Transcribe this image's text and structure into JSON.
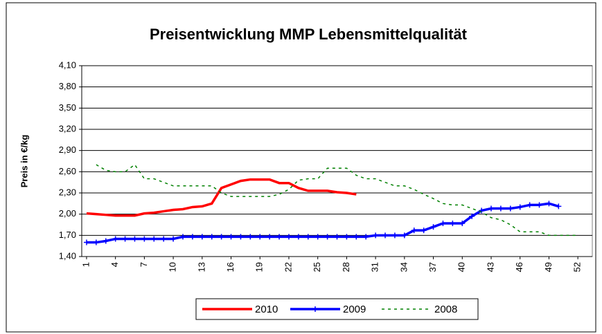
{
  "chart_data": {
    "type": "line",
    "title": "Preisentwicklung MMP Lebensmittelqualität",
    "y_label": "Preis in €/kg",
    "x": [
      1,
      2,
      3,
      4,
      5,
      6,
      7,
      8,
      9,
      10,
      11,
      12,
      13,
      14,
      15,
      16,
      17,
      18,
      19,
      20,
      21,
      22,
      23,
      24,
      25,
      26,
      27,
      28,
      29,
      30,
      31,
      32,
      33,
      34,
      35,
      36,
      37,
      38,
      39,
      40,
      41,
      42,
      43,
      44,
      45,
      46,
      47,
      48,
      49,
      50,
      51,
      52,
      53
    ],
    "xlim": [
      0.5,
      53.5
    ],
    "xticks": [
      1,
      4,
      7,
      10,
      13,
      16,
      19,
      22,
      25,
      28,
      31,
      34,
      37,
      40,
      43,
      46,
      49,
      52
    ],
    "ylim": [
      1.4,
      4.1
    ],
    "yticks": [
      {
        "value": 1.4,
        "label": "1,40"
      },
      {
        "value": 1.7,
        "label": "1,70"
      },
      {
        "value": 2.0,
        "label": "2,00"
      },
      {
        "value": 2.3,
        "label": "2,30"
      },
      {
        "value": 2.6,
        "label": "2,60"
      },
      {
        "value": 2.9,
        "label": "2,90"
      },
      {
        "value": 3.2,
        "label": "3,20"
      },
      {
        "value": 3.5,
        "label": "3,50"
      },
      {
        "value": 3.8,
        "label": "3,80"
      },
      {
        "value": 4.1,
        "label": "4,10"
      }
    ],
    "grid": true,
    "legend": "bottom",
    "series": [
      {
        "name": "2010",
        "color": "#ff0000",
        "style": "solid",
        "values": [
          2.01,
          2.0,
          1.99,
          1.98,
          1.98,
          1.98,
          2.01,
          2.02,
          2.04,
          2.06,
          2.07,
          2.1,
          2.11,
          2.15,
          2.37,
          2.42,
          2.47,
          2.49,
          2.49,
          2.49,
          2.44,
          2.44,
          2.37,
          2.33,
          2.33,
          2.33,
          2.31,
          2.3,
          2.28,
          null,
          null,
          null,
          null,
          null,
          null,
          null,
          null,
          null,
          null,
          null,
          null,
          null,
          null,
          null,
          null,
          null,
          null,
          null,
          null,
          null,
          null,
          null,
          null
        ]
      },
      {
        "name": "2009",
        "color": "#0000ff",
        "style": "marker",
        "values": [
          1.6,
          1.6,
          1.62,
          1.65,
          1.65,
          1.65,
          1.65,
          1.65,
          1.65,
          1.65,
          1.68,
          1.68,
          1.68,
          1.68,
          1.68,
          1.68,
          1.68,
          1.68,
          1.68,
          1.68,
          1.68,
          1.68,
          1.68,
          1.68,
          1.68,
          1.68,
          1.68,
          1.68,
          1.68,
          1.68,
          1.7,
          1.7,
          1.7,
          1.7,
          1.77,
          1.77,
          1.82,
          1.87,
          1.87,
          1.87,
          1.97,
          2.05,
          2.08,
          2.08,
          2.08,
          2.1,
          2.13,
          2.13,
          2.15,
          2.11,
          null,
          null,
          null
        ]
      },
      {
        "name": "2008",
        "color": "#008000",
        "style": "dashed",
        "values": [
          null,
          2.7,
          2.62,
          2.6,
          2.6,
          2.7,
          2.5,
          2.5,
          2.45,
          2.4,
          2.4,
          2.4,
          2.4,
          2.4,
          2.3,
          2.25,
          2.25,
          2.25,
          2.25,
          2.25,
          2.28,
          2.35,
          2.48,
          2.5,
          2.5,
          2.65,
          2.65,
          2.65,
          2.55,
          2.5,
          2.5,
          2.45,
          2.4,
          2.4,
          2.35,
          2.28,
          2.22,
          2.15,
          2.13,
          2.13,
          2.08,
          2.03,
          1.95,
          1.92,
          1.85,
          1.75,
          1.75,
          1.75,
          1.7,
          1.7,
          1.7,
          1.7,
          null
        ]
      }
    ]
  }
}
